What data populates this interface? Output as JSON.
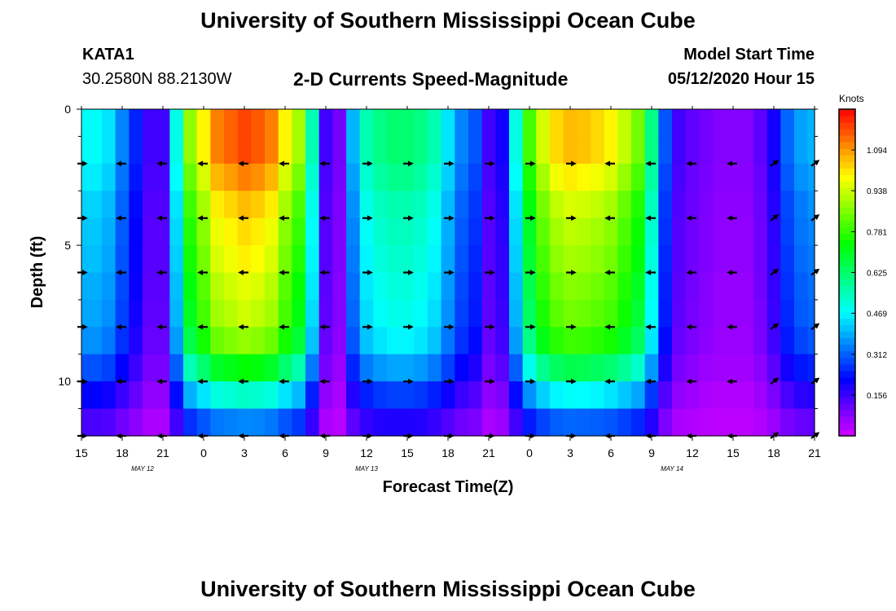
{
  "header": {
    "title": "University of Southern Mississippi Ocean Cube",
    "station_id": "KATA1",
    "coordinates": "30.2580N 88.2130W",
    "subtitle": "2-D Currents Speed-Magnitude",
    "model_start_label": "Model Start Time",
    "model_start_value": "05/12/2020 Hour 15"
  },
  "footer": {
    "title": "University of Southern Mississippi Ocean Cube"
  },
  "chart_data": {
    "type": "heatmap",
    "title": "2-D Currents Speed-Magnitude",
    "xlabel": "Forecast Time(Z)",
    "ylabel": "Depth (ft)",
    "x_range_hours": [
      0,
      54
    ],
    "x_tick_hours": [
      0,
      3,
      6,
      9,
      12,
      15,
      18,
      21,
      24,
      27,
      30,
      33,
      36,
      39,
      42,
      45,
      48,
      51,
      54
    ],
    "x_tick_labels": [
      "15",
      "18",
      "21",
      "0",
      "3",
      "6",
      "9",
      "12",
      "15",
      "18",
      "21",
      "0",
      "3",
      "6",
      "9",
      "12",
      "15",
      "18",
      "21"
    ],
    "date_labels": [
      {
        "hour": 4.5,
        "text": "MAY  12"
      },
      {
        "hour": 21,
        "text": "MAY  13"
      },
      {
        "hour": 43.5,
        "text": "MAY  14"
      }
    ],
    "y_range_ft": [
      0,
      12
    ],
    "y_ticks": [
      0,
      5,
      10
    ],
    "y_tick_labels": [
      "0",
      "5",
      "10"
    ],
    "colorbar": {
      "units": "Knots",
      "min": 0.0,
      "max": 1.25,
      "tick_values": [
        0.156,
        0.312,
        0.469,
        0.625,
        0.781,
        0.938,
        1.094
      ],
      "tick_labels": [
        "0.156",
        "0.312",
        "0.469",
        "0.625",
        "0.781",
        "0.938",
        "1.094"
      ]
    },
    "speed_profile": {
      "times_hours": [
        0,
        1,
        2,
        3,
        4,
        5,
        6,
        7,
        8,
        9,
        10,
        11,
        12,
        13,
        14,
        15,
        16,
        17,
        18,
        19,
        20,
        21,
        22,
        23,
        24,
        25,
        26,
        27,
        28,
        29,
        30,
        31,
        32,
        33,
        34,
        35,
        36,
        37,
        38,
        39,
        40,
        41,
        42,
        43,
        44,
        45,
        46,
        47,
        48,
        49,
        50,
        51,
        52,
        53,
        54
      ],
      "amplitude": [
        0.48,
        0.48,
        0.45,
        0.35,
        0.25,
        0.15,
        0.15,
        0.5,
        0.88,
        1.0,
        1.12,
        1.15,
        1.18,
        1.16,
        1.12,
        1.0,
        0.9,
        0.55,
        0.15,
        0.1,
        0.4,
        0.55,
        0.6,
        0.62,
        0.62,
        0.6,
        0.55,
        0.45,
        0.35,
        0.3,
        0.15,
        0.2,
        0.5,
        0.8,
        0.95,
        1.03,
        1.06,
        1.05,
        1.03,
        1.0,
        0.93,
        0.85,
        0.6,
        0.3,
        0.15,
        0.12,
        0.1,
        0.08,
        0.08,
        0.08,
        0.12,
        0.2,
        0.32,
        0.38,
        0.4
      ],
      "depth_layers_ft": [
        0.5,
        1.5,
        2.5,
        3.5,
        4.5,
        5.5,
        6.5,
        7.5,
        8.5,
        9.5,
        10.5,
        11.5
      ],
      "depth_factor": [
        1.0,
        1.0,
        0.95,
        0.9,
        0.87,
        0.85,
        0.82,
        0.8,
        0.75,
        0.62,
        0.45,
        0.3
      ]
    },
    "vector_arrows": {
      "depths_ft": [
        2,
        4,
        6,
        8,
        10,
        12
      ],
      "times_hours": [
        0,
        3,
        6,
        9,
        12,
        15,
        18,
        21,
        24,
        27,
        30,
        33,
        36,
        39,
        42,
        45,
        48,
        51,
        54
      ],
      "direction_by_time": [
        "E",
        "W",
        "W",
        "W",
        "W",
        "W",
        "W",
        "E",
        "E",
        "E",
        "E",
        "E",
        "E",
        "W",
        "W",
        "W",
        "W",
        "NE",
        "NE"
      ]
    }
  }
}
